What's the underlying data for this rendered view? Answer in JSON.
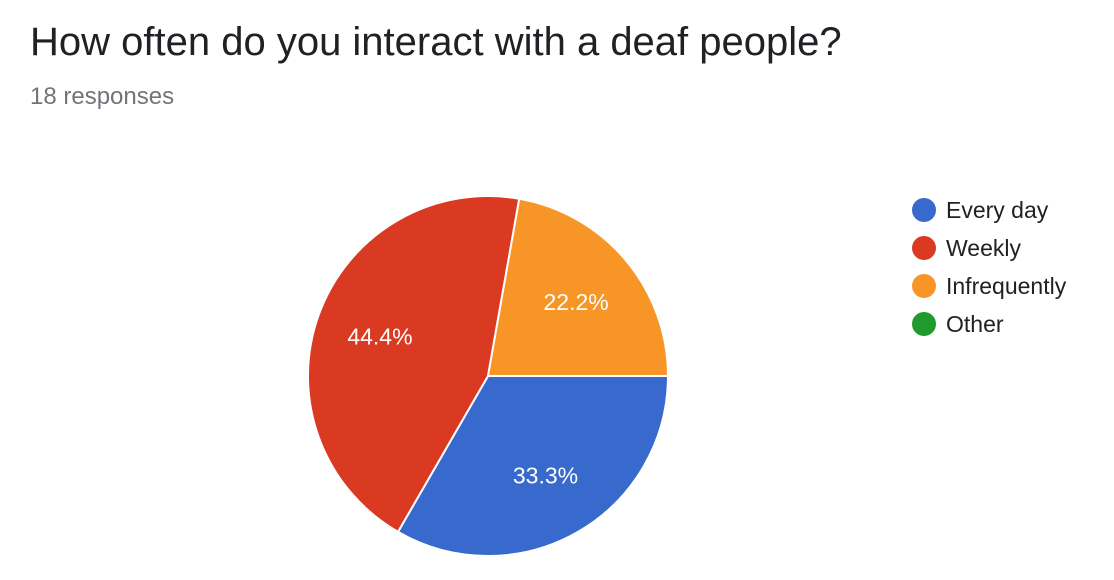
{
  "header": {
    "title": "How often do you interact with a deaf people?",
    "subtitle": "18 responses"
  },
  "chart_data": {
    "type": "pie",
    "categories": [
      "Every day",
      "Weekly",
      "Infrequently",
      "Other"
    ],
    "values": [
      33.3,
      44.4,
      22.2,
      0
    ],
    "labels": [
      "33.3%",
      "44.4%",
      "22.2%",
      ""
    ],
    "colors": [
      "#3869cc",
      "#d93a21",
      "#f79627",
      "#1f9a2d"
    ],
    "start_angle_deg": 90,
    "direction": "clockwise",
    "legend_position": "right"
  }
}
